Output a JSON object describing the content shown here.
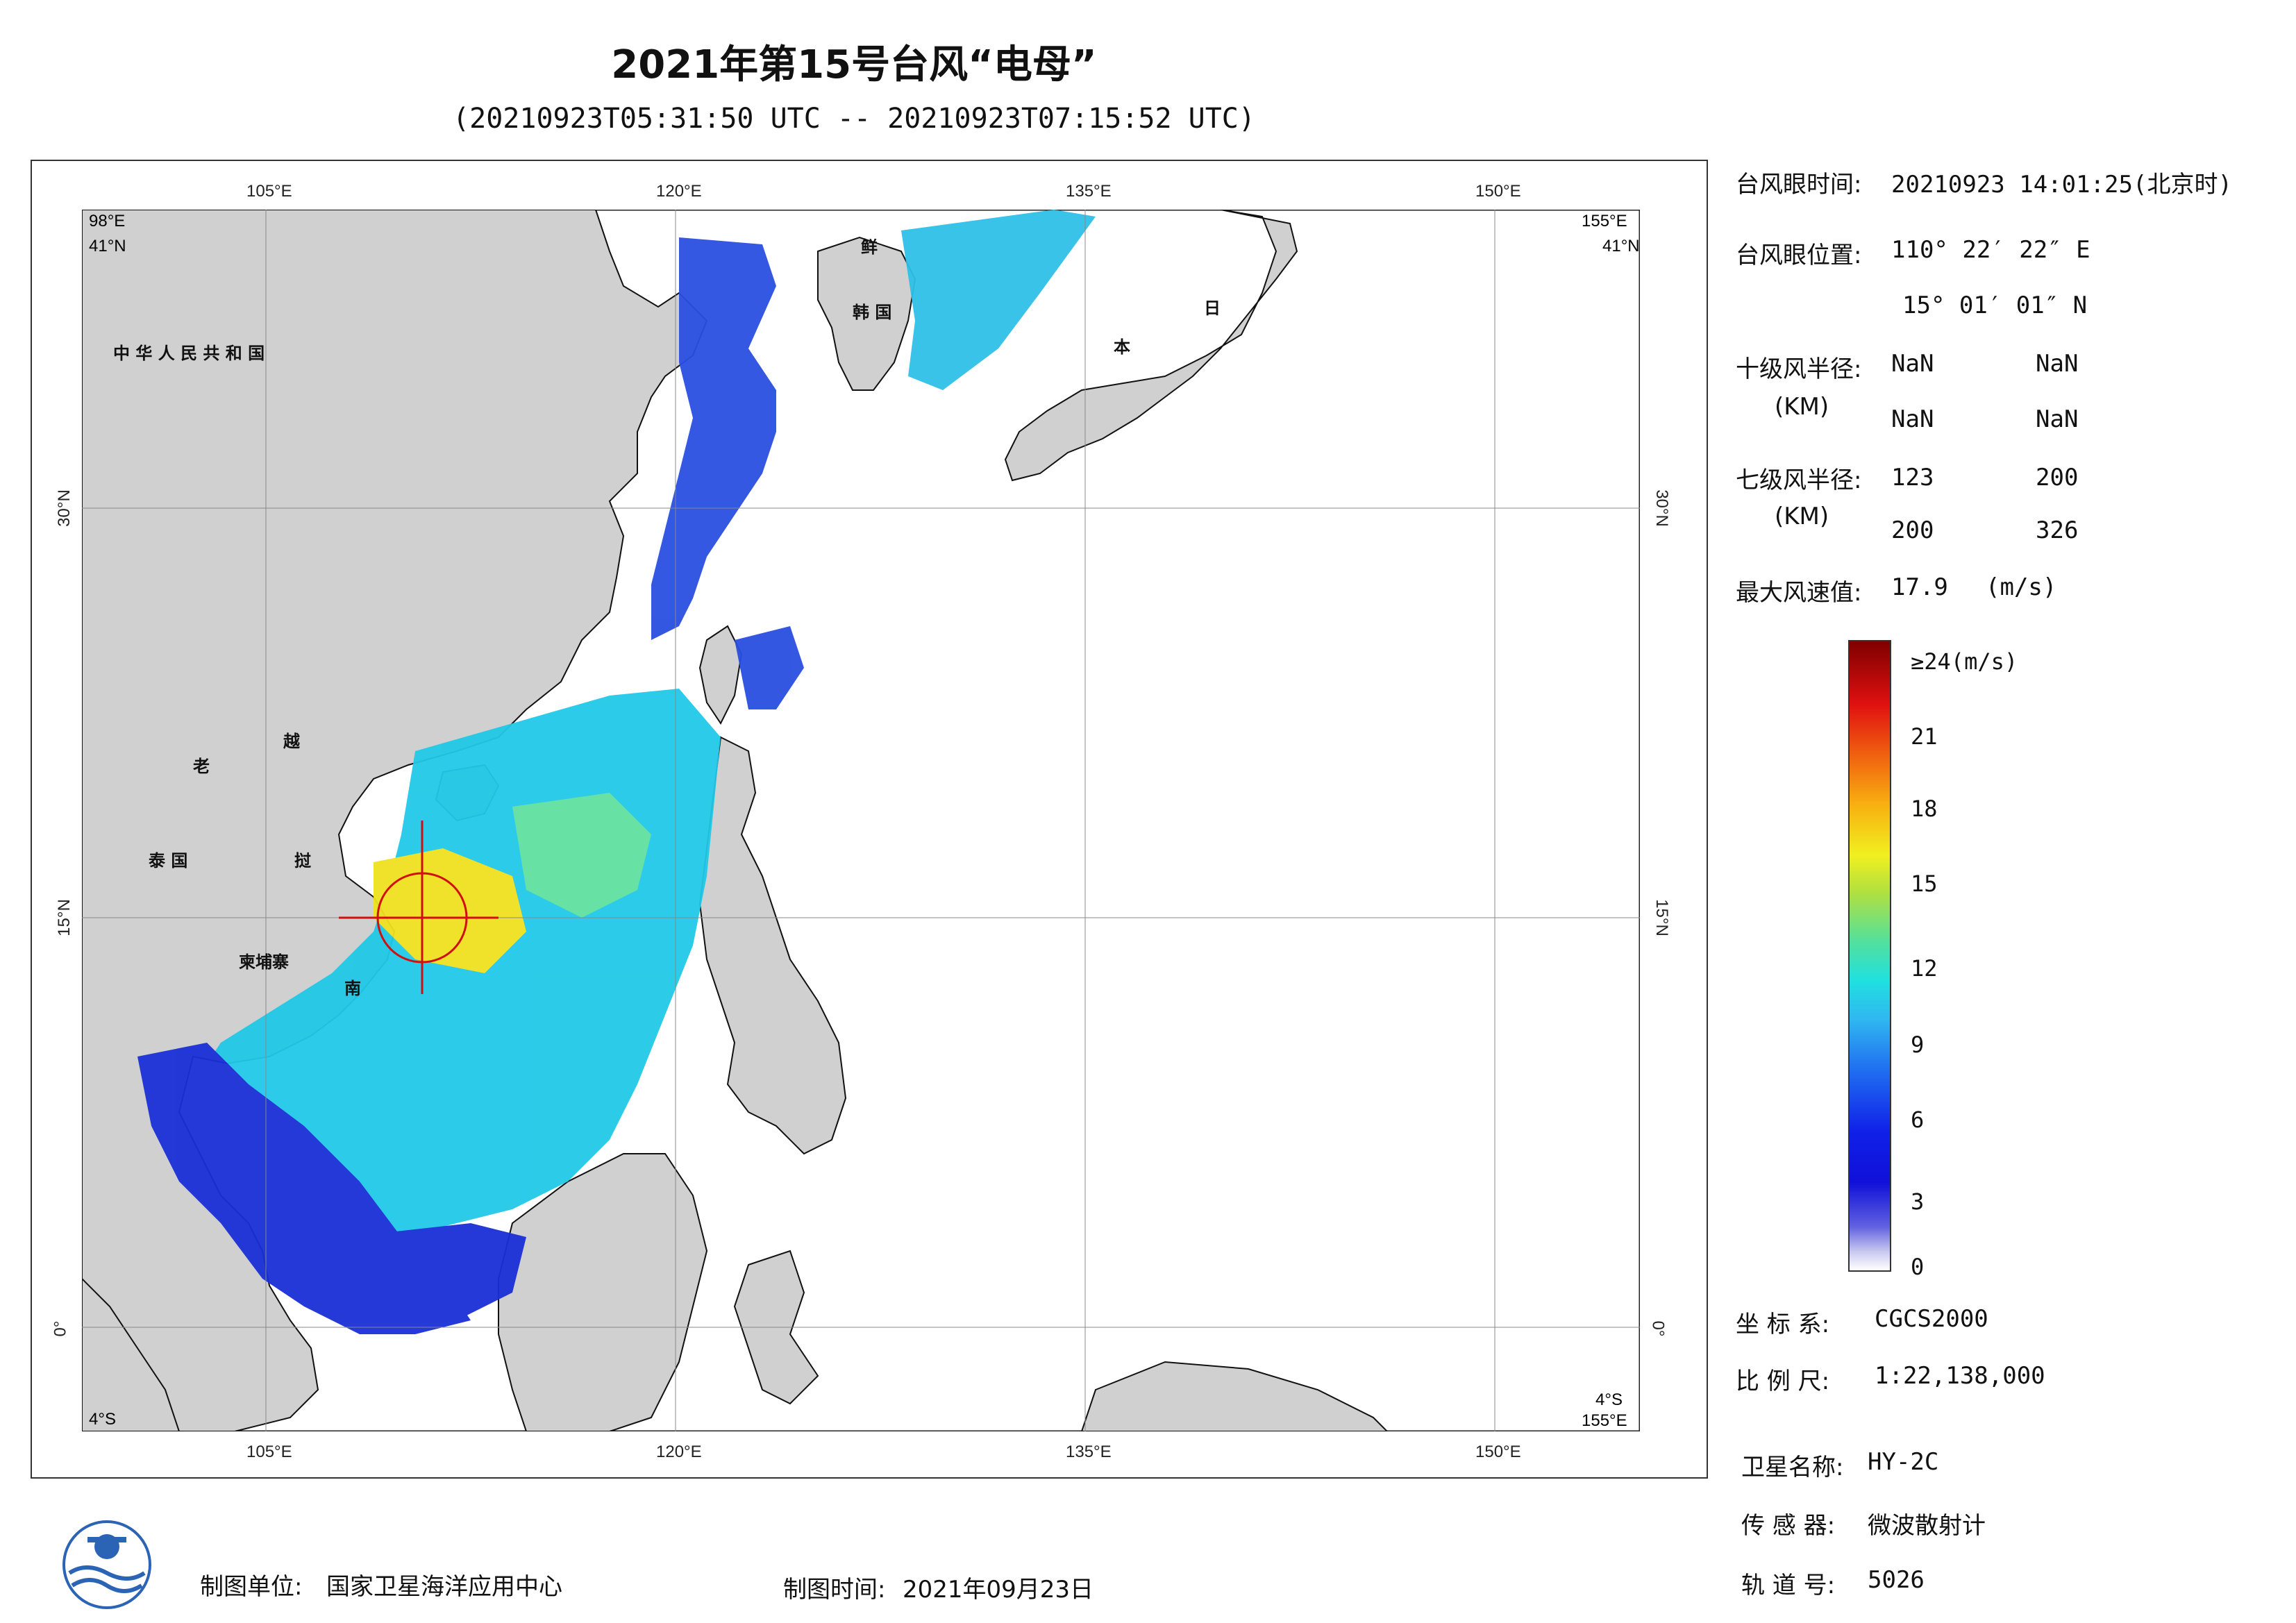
{
  "header": {
    "title": "2021年第15号台风“电母”",
    "subtitle": "(20210923T05:31:50 UTC -- 20210923T07:15:52 UTC)"
  },
  "map": {
    "lon_range": [
      98,
      155
    ],
    "lat_range": [
      -4,
      41
    ],
    "top_ticks": [
      "105°E",
      "120°E",
      "135°E",
      "150°E"
    ],
    "bottom_ticks": [
      "105°E",
      "120°E",
      "135°E",
      "150°E"
    ],
    "lat_ticks": [
      "30°N",
      "15°N",
      "0°"
    ],
    "corner_tl_lon": "98°E",
    "corner_tl_lat": "41°N",
    "corner_tr_lon": "155°E",
    "corner_tr_lat": "41°N",
    "corner_bl_lat": "4°S",
    "corner_br_lon": "155°E",
    "corner_br_lat": "4°S",
    "countries": [
      "中 华 人 民 共 和 国",
      "鲜",
      "韩 国",
      "日",
      "本",
      "老",
      "越",
      "泰 国",
      "挝",
      "柬埔寨",
      "南"
    ],
    "land_color": "#d0d0d0",
    "typhoon_center": {
      "lon": 110.37,
      "lat": 15.02
    }
  },
  "info": {
    "eye_time_label": "台风眼时间:",
    "eye_time_value": "20210923 14:01:25(北京时)",
    "eye_pos_label": "台风眼位置:",
    "eye_pos_lon": "110° 22′ 22″ E",
    "eye_pos_lat": "15° 01′ 01″ N",
    "r10_label": "十级风半径:",
    "r10_unit": "(KM)",
    "r10_values": [
      "NaN",
      "NaN",
      "NaN",
      "NaN"
    ],
    "r7_label": "七级风半径:",
    "r7_unit": "(KM)",
    "r7_values": [
      "123",
      "200",
      "200",
      "326"
    ],
    "max_wind_label": "最大风速值:",
    "max_wind_value": "17.9",
    "max_wind_unit": "(m/s)"
  },
  "legend": {
    "top_label": "≥24(m/s)",
    "ticks": [
      "21",
      "18",
      "15",
      "12",
      "9",
      "6",
      "3",
      "0"
    ]
  },
  "meta_right": {
    "coord_label": "坐 标 系:",
    "coord_value": "CGCS2000",
    "scale_label": "比 例 尺:",
    "scale_value": "1:22,138,000",
    "sat_label": "卫星名称:",
    "sat_value": "HY-2C",
    "sensor_label": "传 感 器:",
    "sensor_value": "微波散射计",
    "orbit_label": "轨 道 号:",
    "orbit_value": "5026"
  },
  "footer": {
    "maker_label": "制图单位:",
    "maker_value": "国家卫星海洋应用中心",
    "date_label": "制图时间:",
    "date_value": "2021年09月23日"
  }
}
